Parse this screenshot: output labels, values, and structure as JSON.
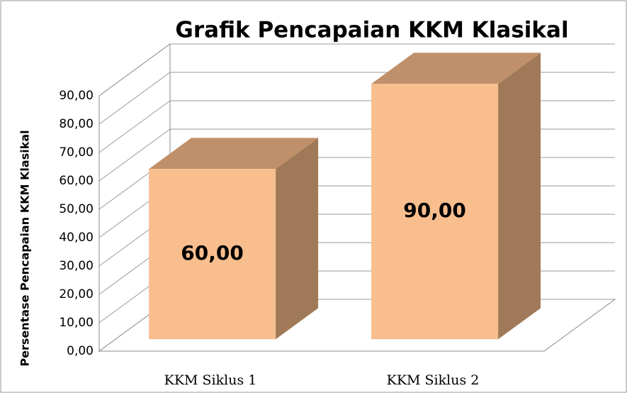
{
  "chart_data": {
    "type": "bar3d",
    "title": "Grafik Pencapaian KKM Klasikal",
    "ylabel": "Persentase Pencapaian KKM Klasikal",
    "categories": [
      "KKM Siklus 1",
      "KKM Siklus 2"
    ],
    "values": [
      60,
      90
    ],
    "value_labels": [
      "60,00",
      "90,00"
    ],
    "color": "#f9be8e",
    "ylim": [
      0,
      90
    ],
    "yticks": [
      {
        "value": 0,
        "label": "0,00"
      },
      {
        "value": 10,
        "label": "10,00"
      },
      {
        "value": 20,
        "label": "20,00"
      },
      {
        "value": 30,
        "label": "30,00"
      },
      {
        "value": 40,
        "label": "40,00"
      },
      {
        "value": 50,
        "label": "50,00"
      },
      {
        "value": 60,
        "label": "60,00"
      },
      {
        "value": 70,
        "label": "70,00"
      },
      {
        "value": 80,
        "label": "80,00"
      },
      {
        "value": 90,
        "label": "90,00"
      }
    ],
    "grid": true
  }
}
